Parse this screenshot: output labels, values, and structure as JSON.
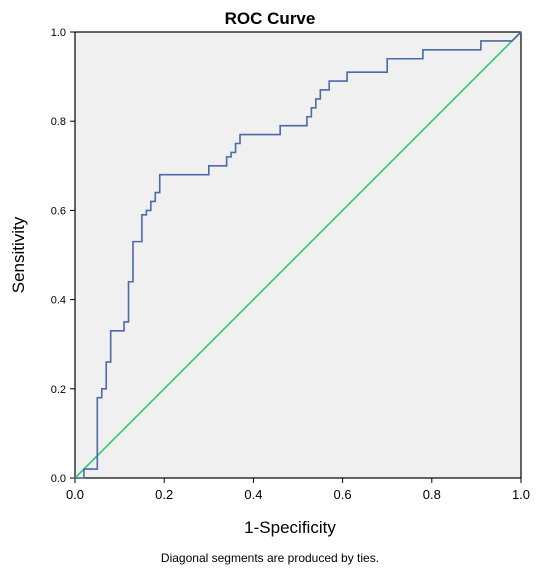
{
  "chart_data": {
    "type": "line",
    "title": "ROC Curve",
    "xlabel": "1-Specificity",
    "ylabel": "Sensitivity",
    "footnote": "Diagonal segments are produced by ties.",
    "xlim": [
      0,
      1
    ],
    "ylim": [
      0,
      1
    ],
    "grid": false,
    "legend": "none",
    "background_color": "#f0f0f0",
    "x_ticks": [
      "0.0",
      "0.2",
      "0.4",
      "0.6",
      "0.8",
      "1.0"
    ],
    "y_ticks": [
      "0.0",
      "0.2",
      "0.4",
      "0.6",
      "0.8",
      "1.0"
    ],
    "series": [
      {
        "color": "#4a6aa8",
        "x": [
          0.0,
          0.02,
          0.02,
          0.05,
          0.05,
          0.06,
          0.06,
          0.07,
          0.07,
          0.08,
          0.08,
          0.11,
          0.11,
          0.12,
          0.12,
          0.13,
          0.13,
          0.15,
          0.15,
          0.16,
          0.16,
          0.17,
          0.17,
          0.18,
          0.18,
          0.19,
          0.19,
          0.3,
          0.3,
          0.34,
          0.34,
          0.35,
          0.35,
          0.36,
          0.36,
          0.37,
          0.37,
          0.46,
          0.46,
          0.52,
          0.52,
          0.53,
          0.53,
          0.54,
          0.54,
          0.55,
          0.55,
          0.57,
          0.57,
          0.61,
          0.61,
          0.7,
          0.7,
          0.78,
          0.78,
          0.91,
          0.91,
          0.98,
          1.0
        ],
        "y": [
          0.0,
          0.0,
          0.02,
          0.02,
          0.18,
          0.18,
          0.2,
          0.2,
          0.26,
          0.26,
          0.33,
          0.33,
          0.35,
          0.35,
          0.44,
          0.44,
          0.53,
          0.53,
          0.59,
          0.59,
          0.6,
          0.6,
          0.62,
          0.62,
          0.64,
          0.64,
          0.68,
          0.68,
          0.7,
          0.7,
          0.72,
          0.72,
          0.73,
          0.73,
          0.75,
          0.75,
          0.77,
          0.77,
          0.79,
          0.79,
          0.81,
          0.81,
          0.83,
          0.83,
          0.85,
          0.85,
          0.87,
          0.87,
          0.89,
          0.89,
          0.91,
          0.91,
          0.94,
          0.94,
          0.96,
          0.96,
          0.98,
          0.98,
          1.0
        ]
      },
      {
        "color": "#2ecc71",
        "x": [
          0.0,
          1.0
        ],
        "y": [
          0.0,
          1.0
        ]
      }
    ]
  }
}
